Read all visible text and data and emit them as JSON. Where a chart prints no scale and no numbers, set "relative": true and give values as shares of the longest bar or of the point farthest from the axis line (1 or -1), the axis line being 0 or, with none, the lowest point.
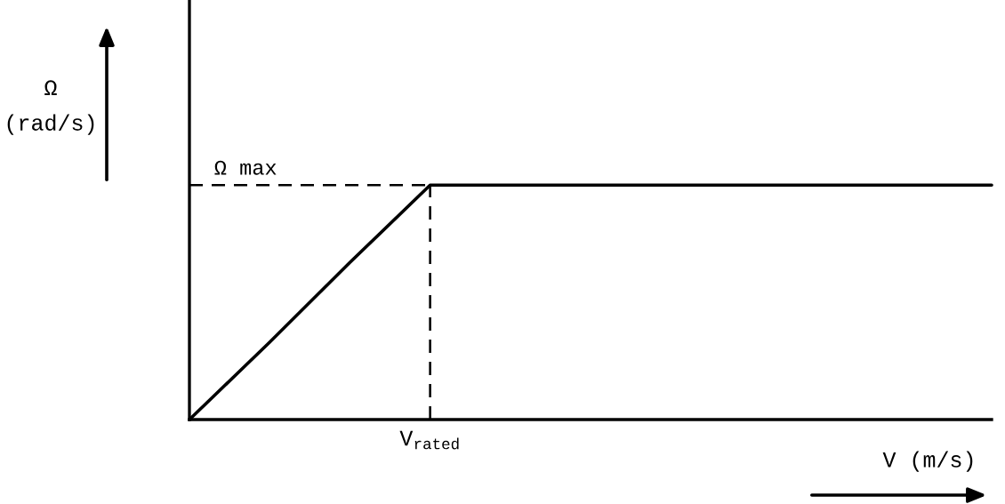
{
  "chart_data": {
    "type": "line",
    "relative": true,
    "xlabel": "V (m/s)",
    "ylabel": "Ω\n(rad/s)",
    "categories": [
      null,
      null,
      null,
      null,
      null,
      null,
      null,
      null,
      null,
      null,
      null
    ],
    "values": [
      0,
      0.33,
      0.67,
      1,
      1,
      1,
      1,
      1,
      1,
      1,
      1
    ],
    "color": "#000000",
    "ref_lines": [
      {
        "axis": "y",
        "value": 1,
        "label": "Ω max",
        "line_style": "dashed",
        "color": "#000000"
      }
    ],
    "annotations": [
      "V$_{rated}$"
    ],
    "line_style": "solid",
    "marker": "none",
    "legend": false
  }
}
